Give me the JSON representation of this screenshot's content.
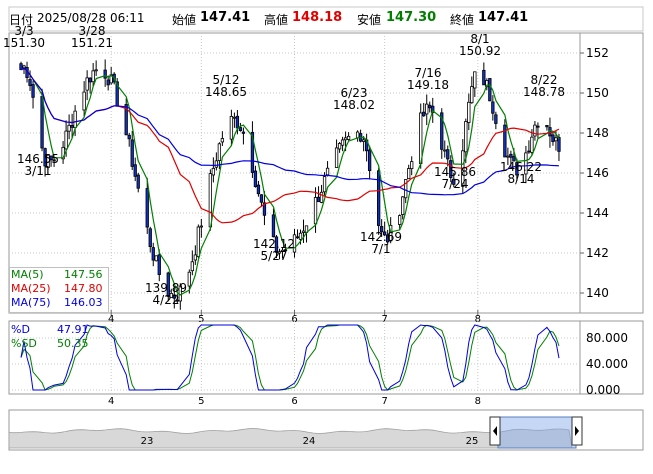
{
  "header": {
    "date_label": "日付",
    "datetime": "2025/08/28 06:11",
    "open_label": "始値",
    "open": "147.41",
    "high_label": "高値",
    "high": "148.18",
    "low_label": "安値",
    "low": "147.30",
    "close_label": "終値",
    "close": "147.41",
    "colors": {
      "high": "#e00000",
      "low": "#008000",
      "label": "#000000"
    }
  },
  "chart_data": [
    {
      "type": "candlestick",
      "title": "",
      "x_tick_labels": [
        "4",
        "5",
        "6",
        "7",
        "8"
      ],
      "ylim": [
        139,
        153
      ],
      "y_ticks": [
        "140",
        "142",
        "144",
        "146",
        "148",
        "150",
        "152"
      ],
      "annotations": [
        {
          "text": "3/3",
          "value": "151.30"
        },
        {
          "text": "3/28",
          "value": "151.21"
        },
        {
          "text": "3/11",
          "value": "146.55"
        },
        {
          "text": "4/22",
          "value": "139.89"
        },
        {
          "text": "5/12",
          "value": "148.65"
        },
        {
          "text": "5/27",
          "value": "142.12"
        },
        {
          "text": "6/23",
          "value": "148.02"
        },
        {
          "text": "7/1",
          "value": "142.69"
        },
        {
          "text": "7/16",
          "value": "149.18"
        },
        {
          "text": "7/24",
          "value": "145.86"
        },
        {
          "text": "8/1",
          "value": "150.92"
        },
        {
          "text": "8/14",
          "value": "146.22"
        },
        {
          "text": "8/22",
          "value": "148.78"
        }
      ],
      "key_points": [
        {
          "date": "3/3",
          "value": 151.3
        },
        {
          "date": "3/11",
          "value": 146.55
        },
        {
          "date": "3/28",
          "value": 151.21
        },
        {
          "date": "4/22",
          "value": 139.89
        },
        {
          "date": "5/12",
          "value": 148.65
        },
        {
          "date": "5/27",
          "value": 142.12
        },
        {
          "date": "6/23",
          "value": 148.02
        },
        {
          "date": "7/1",
          "value": 142.69
        },
        {
          "date": "7/16",
          "value": 149.18
        },
        {
          "date": "7/24",
          "value": 145.86
        },
        {
          "date": "8/1",
          "value": 150.92
        },
        {
          "date": "8/14",
          "value": 146.22
        },
        {
          "date": "8/22",
          "value": 148.78
        },
        {
          "date": "8/28",
          "value": 147.41
        }
      ],
      "moving_averages": [
        {
          "name": "MA(5)",
          "value": "147.56",
          "color": "#008000"
        },
        {
          "name": "MA(25)",
          "value": "147.80",
          "color": "#e00000"
        },
        {
          "name": "MA(75)",
          "value": "146.03",
          "color": "#0000e0"
        }
      ],
      "colors": {
        "up": "#ffffff",
        "down": "#1030c0",
        "outline": "#000000",
        "grid": "#c8c8c8"
      }
    },
    {
      "type": "line",
      "title": "",
      "series": [
        {
          "name": "%D",
          "value": "47.91",
          "color": "#0000e0"
        },
        {
          "name": "%SD",
          "value": "50.35",
          "color": "#008000"
        }
      ],
      "ylim": [
        0,
        100
      ],
      "y_ticks": [
        "80.000",
        "40.000",
        "0.000"
      ],
      "x_tick_labels": [
        "4",
        "5",
        "6",
        "7",
        "8"
      ]
    },
    {
      "type": "area",
      "title": "",
      "x_tick_labels": [
        "23",
        "24",
        "25"
      ]
    }
  ]
}
